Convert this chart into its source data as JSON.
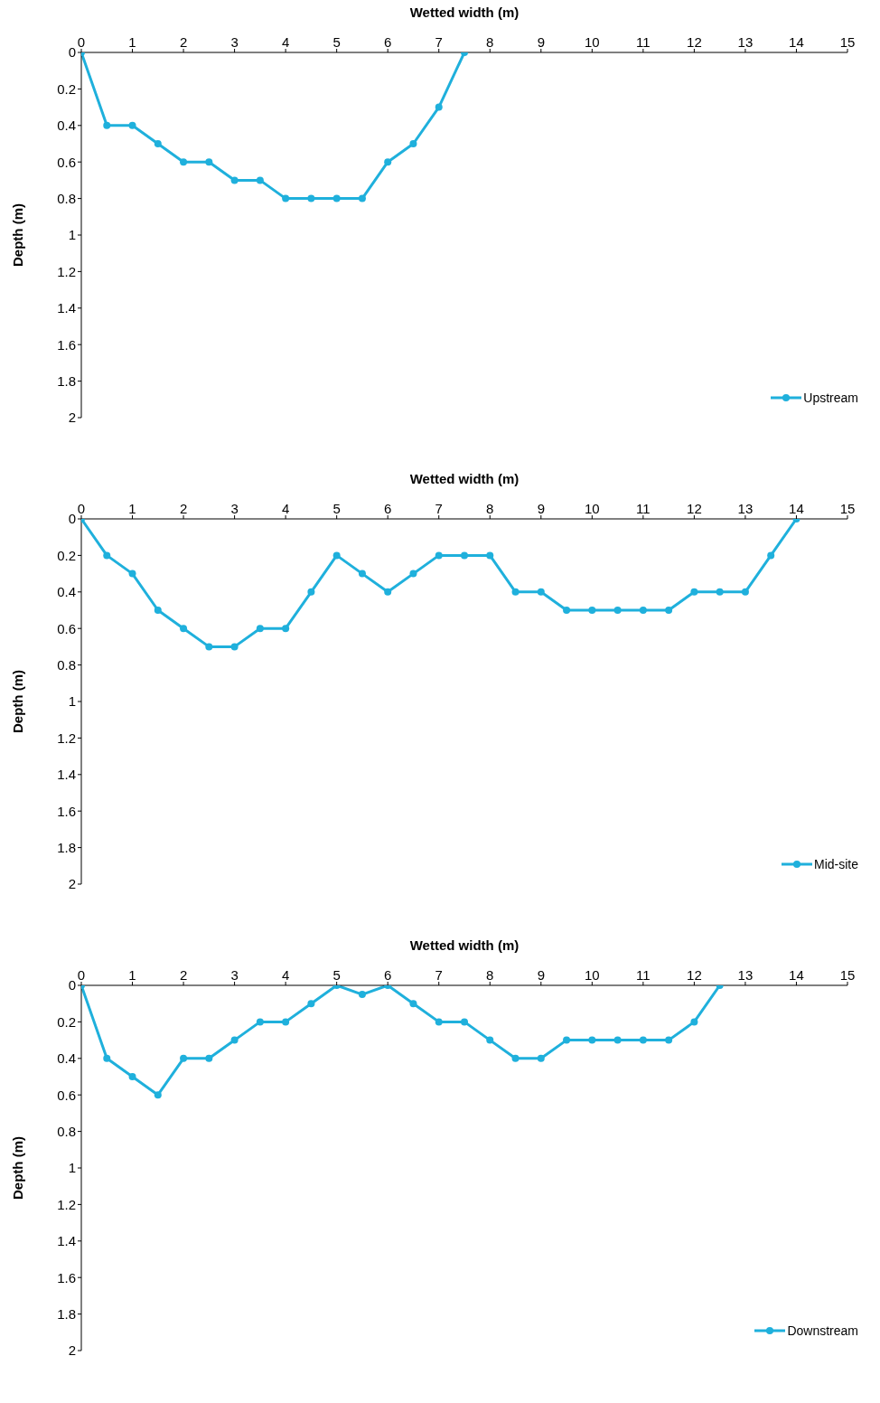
{
  "chart_data": [
    {
      "type": "line",
      "xlabel": "Wetted width (m)",
      "ylabel": "Depth (m)",
      "xlim": [
        0,
        15
      ],
      "xticks": [
        0,
        1,
        2,
        3,
        4,
        5,
        6,
        7,
        8,
        9,
        10,
        11,
        12,
        13,
        14,
        15
      ],
      "ylim": [
        2,
        0
      ],
      "yticks": [
        0,
        0.2,
        0.4,
        0.6,
        0.8,
        1,
        1.2,
        1.4,
        1.6,
        1.8,
        2
      ],
      "grid": false,
      "legend": "bottom right",
      "marker": "circle",
      "line_style": "solid",
      "x": [
        0,
        0.5,
        1,
        1.5,
        2,
        2.5,
        3,
        3.5,
        4,
        4.5,
        5,
        5.5,
        6,
        6.5,
        7,
        7.5
      ],
      "series": [
        {
          "name": "Upstream",
          "color": "#1fb0dc",
          "values": [
            0,
            0.4,
            0.4,
            0.5,
            0.6,
            0.6,
            0.7,
            0.7,
            0.8,
            0.8,
            0.8,
            0.8,
            0.6,
            0.5,
            0.3,
            0
          ]
        }
      ]
    },
    {
      "type": "line",
      "xlabel": "Wetted width (m)",
      "ylabel": "Depth (m)",
      "xlim": [
        0,
        15
      ],
      "xticks": [
        0,
        1,
        2,
        3,
        4,
        5,
        6,
        7,
        8,
        9,
        10,
        11,
        12,
        13,
        14,
        15
      ],
      "ylim": [
        2,
        0
      ],
      "yticks": [
        0,
        0.2,
        0.4,
        0.6,
        0.8,
        1,
        1.2,
        1.4,
        1.6,
        1.8,
        2
      ],
      "grid": false,
      "legend": "bottom right",
      "marker": "circle",
      "line_style": "solid",
      "x": [
        0,
        0.5,
        1,
        1.5,
        2,
        2.5,
        3,
        3.5,
        4,
        4.5,
        5,
        5.5,
        6,
        6.5,
        7,
        7.5,
        8,
        8.5,
        9,
        9.5,
        10,
        10.5,
        11,
        11.5,
        12,
        12.5,
        13,
        13.5,
        14
      ],
      "series": [
        {
          "name": "Mid-site",
          "color": "#1fb0dc",
          "values": [
            0,
            0.2,
            0.3,
            0.5,
            0.6,
            0.7,
            0.7,
            0.6,
            0.6,
            0.4,
            0.2,
            0.3,
            0.4,
            0.3,
            0.2,
            0.2,
            0.2,
            0.4,
            0.4,
            0.5,
            0.5,
            0.5,
            0.5,
            0.5,
            0.4,
            0.4,
            0.4,
            0.2,
            0
          ]
        }
      ]
    },
    {
      "type": "line",
      "xlabel": "Wetted width (m)",
      "ylabel": "Depth (m)",
      "xlim": [
        0,
        15
      ],
      "xticks": [
        0,
        1,
        2,
        3,
        4,
        5,
        6,
        7,
        8,
        9,
        10,
        11,
        12,
        13,
        14,
        15
      ],
      "ylim": [
        2,
        0
      ],
      "yticks": [
        0,
        0.2,
        0.4,
        0.6,
        0.8,
        1,
        1.2,
        1.4,
        1.6,
        1.8,
        2
      ],
      "grid": false,
      "legend": "bottom right",
      "marker": "circle",
      "line_style": "solid",
      "x": [
        0,
        0.5,
        1,
        1.5,
        2,
        2.5,
        3,
        3.5,
        4,
        4.5,
        5,
        5.5,
        6,
        6.5,
        7,
        7.5,
        8,
        8.5,
        9,
        9.5,
        10,
        10.5,
        11,
        11.5,
        12,
        12.5
      ],
      "series": [
        {
          "name": "Downstream",
          "color": "#1fb0dc",
          "values": [
            0,
            0.4,
            0.5,
            0.6,
            0.4,
            0.4,
            0.3,
            0.2,
            0.2,
            0.1,
            0,
            0.05,
            0,
            0.1,
            0.2,
            0.2,
            0.3,
            0.4,
            0.4,
            0.3,
            0.3,
            0.3,
            0.3,
            0.3,
            0.2,
            0
          ]
        }
      ]
    }
  ]
}
